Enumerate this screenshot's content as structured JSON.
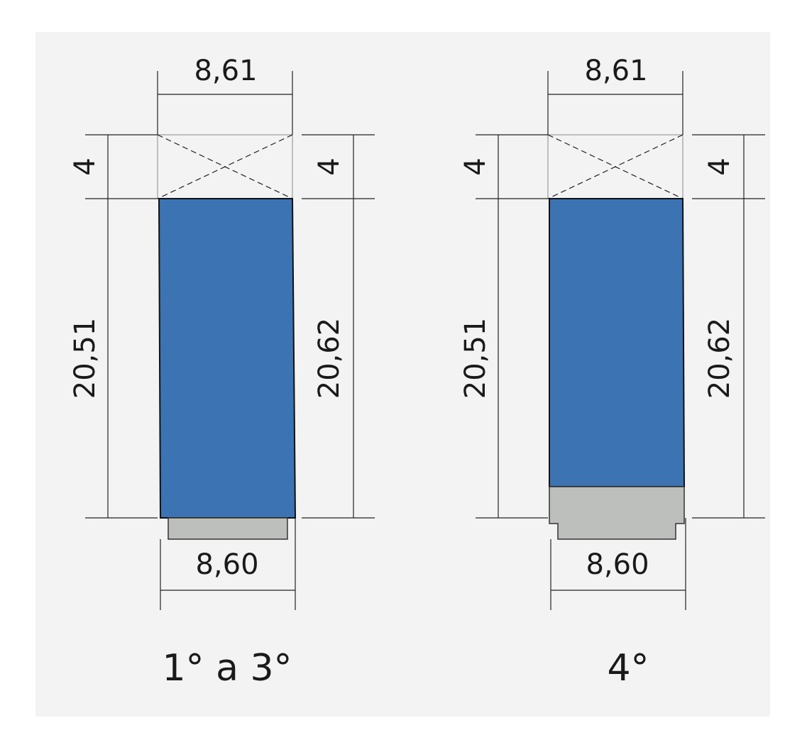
{
  "diagrams": [
    {
      "top_width": "8,61",
      "top_height_left": "4",
      "top_height_right": "4",
      "left_height": "20,51",
      "right_height": "20,62",
      "bottom_width": "8,60",
      "caption": "1° a 3°"
    },
    {
      "top_width": "8,61",
      "top_height_left": "4",
      "top_height_right": "4",
      "left_height": "20,51",
      "right_height": "20,62",
      "bottom_width": "8,60",
      "caption": "4°"
    }
  ]
}
